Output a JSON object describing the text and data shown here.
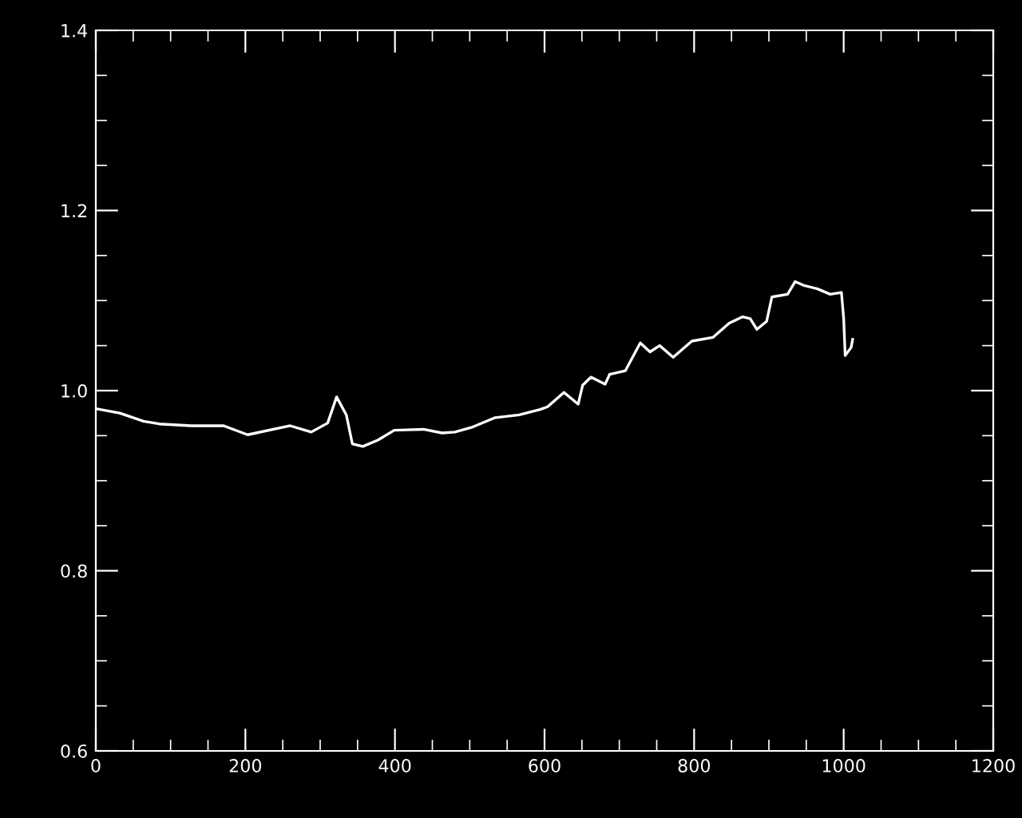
{
  "chart_data": {
    "type": "line",
    "xlim": [
      0,
      1200
    ],
    "ylim": [
      0.6,
      1.4
    ],
    "xticks": [
      0,
      200,
      400,
      600,
      800,
      1000,
      1200
    ],
    "yticks": [
      0.6,
      0.8,
      {
        "value": 1,
        "label": "1.0"
      },
      1.2,
      1.4
    ],
    "grid": false,
    "legend": false,
    "series": [
      {
        "color": "#ffffff",
        "x": [
          0,
          32,
          64,
          85,
          128,
          171,
          203,
          260,
          288,
          310,
          322,
          335,
          343,
          357,
          377,
          399,
          438,
          463,
          480,
          502,
          534,
          566,
          594,
          604,
          626,
          645,
          651,
          662,
          681,
          687,
          708,
          728,
          741,
          754,
          772,
          797,
          825,
          847,
          865,
          875,
          884,
          897,
          904,
          925,
          935,
          946,
          965,
          982,
          997,
          1000,
          1002,
          1010,
          1012
        ],
        "values": [
          0.98,
          0.975,
          0.966,
          0.963,
          0.961,
          0.961,
          0.951,
          0.961,
          0.954,
          0.964,
          0.993,
          0.973,
          0.941,
          0.938,
          0.945,
          0.956,
          0.957,
          0.953,
          0.954,
          0.959,
          0.97,
          0.973,
          0.979,
          0.982,
          0.998,
          0.985,
          1.006,
          1.015,
          1.007,
          1.018,
          1.022,
          1.053,
          1.043,
          1.05,
          1.037,
          1.055,
          1.059,
          1.075,
          1.082,
          1.08,
          1.068,
          1.077,
          1.104,
          1.107,
          1.121,
          1.117,
          1.113,
          1.107,
          1.109,
          1.08,
          1.039,
          1.048,
          1.057
        ]
      }
    ]
  }
}
